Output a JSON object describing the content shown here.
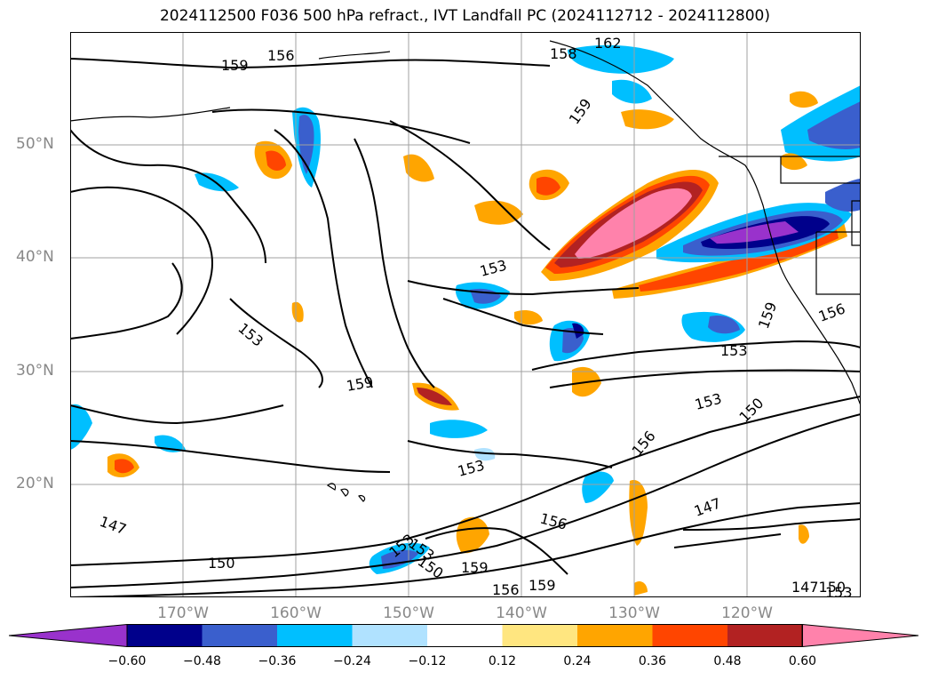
{
  "title": "2024112500 F036 500 hPa refract., IVT Landfall PC (2024112712 - 2024112800)",
  "lat_labels": [
    "50°N",
    "40°N",
    "30°N",
    "20°N"
  ],
  "lon_labels": [
    "170°W",
    "160°W",
    "150°W",
    "140°W",
    "130°W",
    "120°W"
  ],
  "colorbar": {
    "colors": [
      "#9932cc",
      "#00008b",
      "#3a5fcd",
      "#00bfff",
      "#b0e2ff",
      "#ffffff",
      "#ffe680",
      "#ffa500",
      "#ff4500",
      "#b22222",
      "#ff82ab"
    ],
    "ticks": [
      "−0.60",
      "−0.48",
      "−0.36",
      "−0.24",
      "−0.12",
      "0.12",
      "0.24",
      "0.36",
      "0.48",
      "0.60"
    ]
  },
  "contour_labels": [
    "162",
    "158",
    "159",
    "156",
    "159",
    "153",
    "153",
    "159",
    "153",
    "156",
    "159",
    "153",
    "153",
    "150",
    "156",
    "153",
    "147",
    "150",
    "153",
    "150",
    "159",
    "156",
    "159",
    "156",
    "147",
    "147150",
    "153"
  ],
  "colors": {
    "grid": "#a0a0a0",
    "coast": "#000000",
    "contour": "#000000",
    "tick_text": "#888888"
  }
}
